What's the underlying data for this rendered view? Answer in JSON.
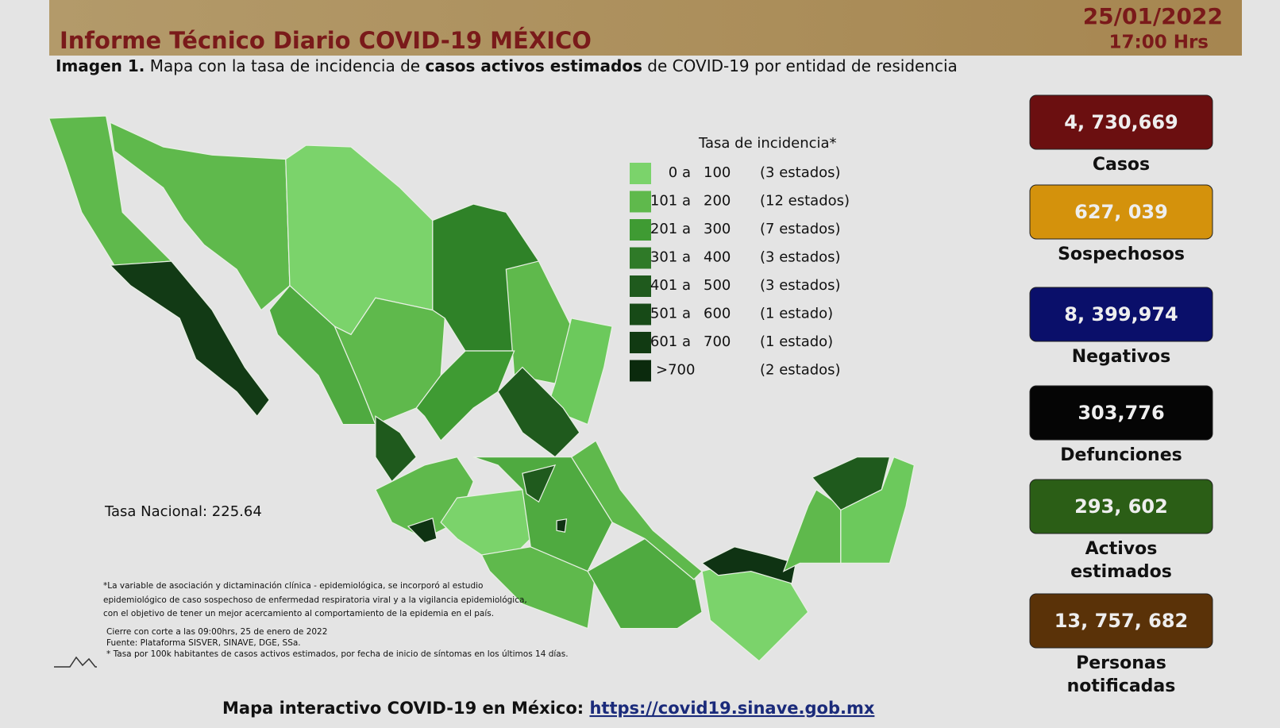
{
  "header": {
    "title": "Informe Técnico Diario COVID-19 MÉXICO",
    "date": "25/01/2022",
    "time": "17:00 Hrs"
  },
  "subtitle": {
    "label": "Imagen 1.",
    "text_1": "Mapa con la tasa de incidencia de ",
    "emphasis": "casos activos estimados",
    "text_2": " de COVID-19 por entidad de residencia"
  },
  "legend": {
    "title": "Tasa de incidencia*",
    "items": [
      {
        "low": "0 a",
        "high": "100",
        "states": "(3 estados)",
        "color": "#7bd36b"
      },
      {
        "low": "101 a",
        "high": "200",
        "states": "(12 estados)",
        "color": "#5fb94c"
      },
      {
        "low": "201 a",
        "high": "300",
        "states": "(7 estados)",
        "color": "#3f9b33"
      },
      {
        "low": "301 a",
        "high": "400",
        "states": "(3 estados)",
        "color": "#2f7a28"
      },
      {
        "low": "401 a",
        "high": "500",
        "states": "(3 estados)",
        "color": "#1f5a1d"
      },
      {
        "low": "501 a",
        "high": "600",
        "states": "(1 estado)",
        "color": "#174a17"
      },
      {
        "low": "601 a",
        "high": "700",
        "states": "(1 estado)",
        "color": "#113a12"
      },
      {
        "low": ">700",
        "states": "(2 estados)",
        "color": "#0b2a0d"
      }
    ]
  },
  "national_rate": "Tasa Nacional: 225.64",
  "notes": [
    "*La variable de asociación y dictaminación clínica - epidemiológica, se incorporó al estudio",
    "epidemiológico de caso sospechoso de enfermedad respiratoria viral y a la vigilancia epidemiológica,",
    "con el objetivo de tener un mejor acercamiento al comportamiento de la epidemia en el país.",
    "Cierre con corte a las 09:00hrs, 25 de enero de 2022",
    "Fuente: Plataforma SISVER, SINAVE, DGE, SSa.",
    "* Tasa por 100k habitantes de casos activos estimados, por fecha de inicio de síntomas en los últimos 14 días."
  ],
  "stats": [
    {
      "value": "4, 730,669",
      "label": [
        "Casos"
      ],
      "color": "#6b0f10"
    },
    {
      "value": "627, 039",
      "label": [
        "Sospechosos"
      ],
      "color": "#d4920c"
    },
    {
      "value": "8, 399,974",
      "label": [
        "Negativos"
      ],
      "color": "#0a0f6a"
    },
    {
      "value": "303,776",
      "label": [
        "Defunciones"
      ],
      "color": "#050505"
    },
    {
      "value": "293, 602",
      "label": [
        "Activos",
        "estimados"
      ],
      "color": "#2b5e16"
    },
    {
      "value": "13, 757, 682",
      "label": [
        "Personas",
        "notificadas"
      ],
      "color": "#5a3208"
    }
  ],
  "footer": {
    "text": "Mapa interactivo COVID-19 en México:",
    "link": "https://covid19.sinave.gob.mx"
  }
}
